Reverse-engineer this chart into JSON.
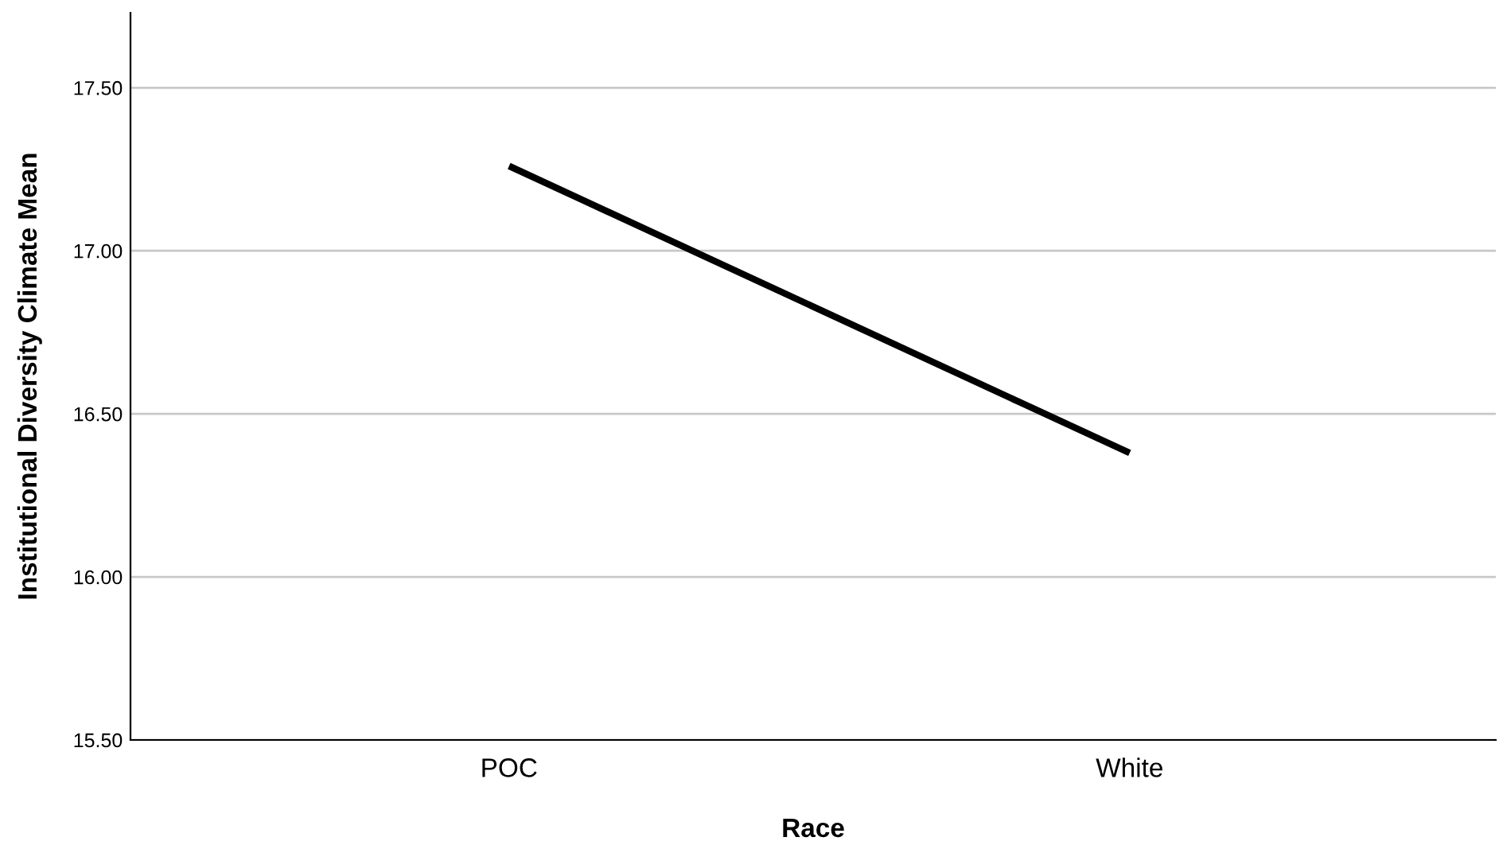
{
  "chart_data": {
    "type": "line",
    "xlabel": "Race",
    "ylabel": "Institutional Diversity Climate Mean",
    "categories": [
      "POC",
      "White"
    ],
    "series": [
      {
        "color": "#000000",
        "values": [
          17.26,
          16.38
        ]
      }
    ],
    "ylim": [
      15.5,
      17.73
    ],
    "yticks": [
      {
        "value": 15.5,
        "label": "15.50"
      },
      {
        "value": 16.0,
        "label": "16.00"
      },
      {
        "value": 16.5,
        "label": "16.50"
      },
      {
        "value": 17.0,
        "label": "17.00"
      },
      {
        "value": 17.5,
        "label": "17.50"
      }
    ],
    "grid": "y",
    "marker": "none",
    "line_style": "solid"
  }
}
